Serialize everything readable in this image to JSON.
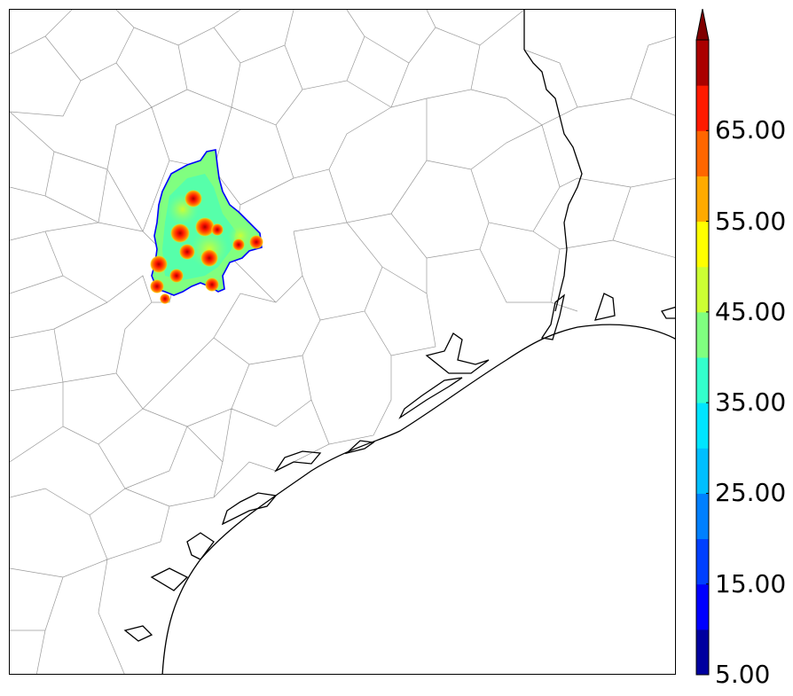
{
  "colorbar": {
    "levels": [
      5,
      10,
      15,
      20,
      25,
      30,
      35,
      40,
      45,
      50,
      55,
      60,
      65,
      70
    ],
    "colors": [
      "#00009f",
      "#0000ff",
      "#0040ff",
      "#0080ff",
      "#00bfff",
      "#00e5ff",
      "#33ffcc",
      "#80ff80",
      "#ccff33",
      "#ffff00",
      "#ffaa00",
      "#ff6600",
      "#ff1a00",
      "#aa0000"
    ],
    "extend_color": "#800000",
    "tick_labels": [
      "5.00",
      "15.00",
      "25.00",
      "35.00",
      "45.00",
      "55.00",
      "65.00"
    ]
  },
  "map": {
    "coastline_color": "#000000",
    "county_line_color": "#9a9a9a",
    "field_outline_color": "#0000ff"
  }
}
